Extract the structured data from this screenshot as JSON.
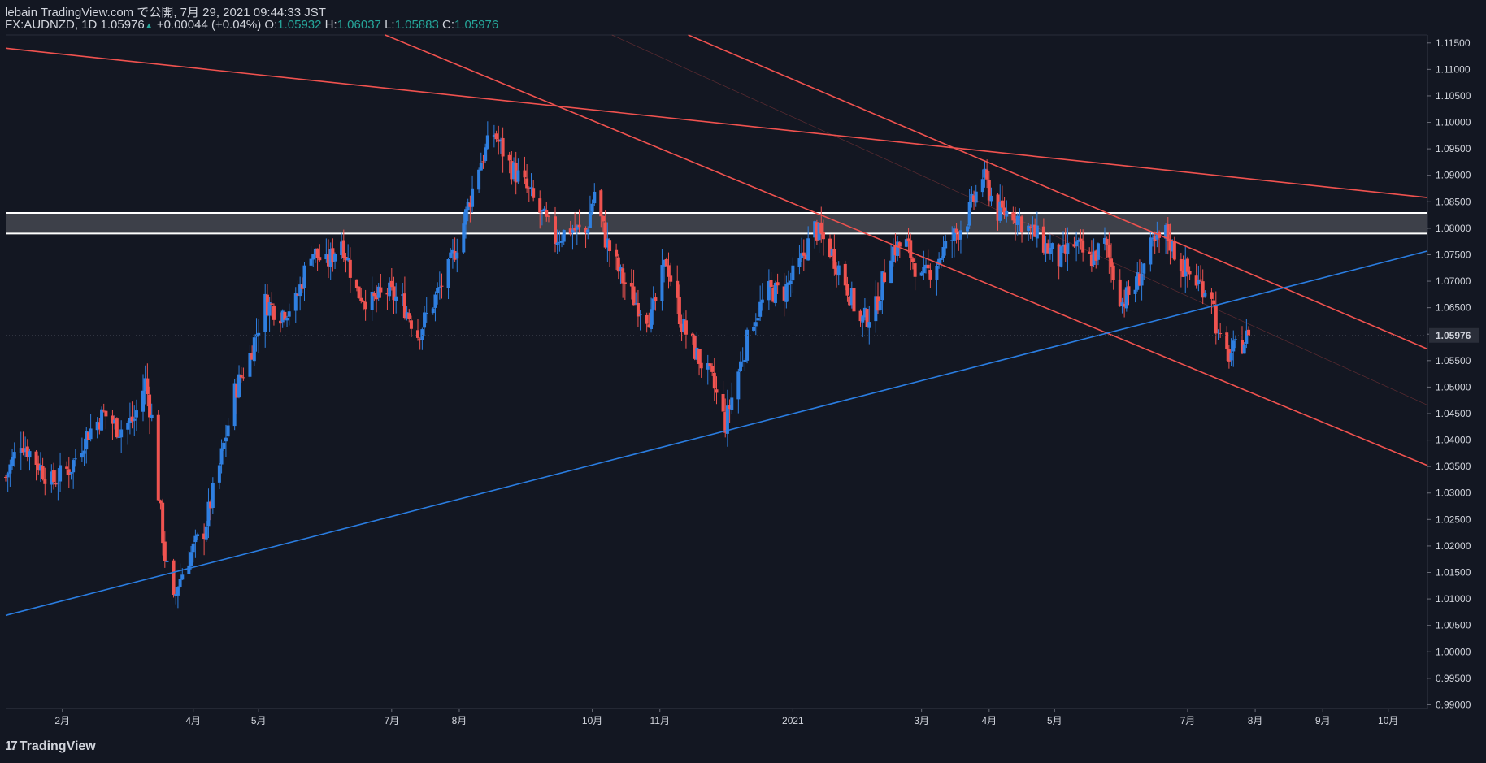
{
  "header": {
    "line1": "lebain TradingView.com で公開, 7月 29, 2021 09:44:33 JST",
    "symbol": "FX:AUDNZD, 1D",
    "last": "1.05976",
    "up_glyph": "▲",
    "change": "+0.00044 (+0.04%)",
    "o_label": "O:",
    "o_value": "1.05932",
    "h_label": "H:",
    "h_value": "1.06037",
    "l_label": "L:",
    "l_value": "1.05883",
    "c_label": "C:",
    "c_value": "1.05976"
  },
  "footer": {
    "logo": "17",
    "brand": "TradingView"
  },
  "colors": {
    "background": "#131722",
    "up": "#2f7fe0",
    "down": "#ef5350",
    "trend_red": "#f0524f",
    "trend_blue": "#2a7de1",
    "zone": "#ffffff"
  },
  "chart_data": {
    "type": "candlestick",
    "symbol": "FX:AUDNZD",
    "interval": "1D",
    "y_ticks": [
      "1.11500",
      "1.11000",
      "1.10500",
      "1.10000",
      "1.09500",
      "1.09000",
      "1.08500",
      "1.08000",
      "1.07500",
      "1.07000",
      "1.06500",
      "1.06000",
      "1.05500",
      "1.05000",
      "1.04500",
      "1.04000",
      "1.03500",
      "1.03000",
      "1.02500",
      "1.02000",
      "1.01500",
      "1.01000",
      "1.00500",
      "1.00000",
      "0.99500",
      "0.99000"
    ],
    "ylim": [
      0.9893,
      1.1165
    ],
    "x_ticks": [
      {
        "label": "2月",
        "date": "2020-02-01"
      },
      {
        "label": "4月",
        "date": "2020-04-01"
      },
      {
        "label": "5月",
        "date": "2020-05-01"
      },
      {
        "label": "7月",
        "date": "2020-07-01"
      },
      {
        "label": "8月",
        "date": "2020-08-01"
      },
      {
        "label": "10月",
        "date": "2020-10-01"
      },
      {
        "label": "11月",
        "date": "2020-11-01"
      },
      {
        "label": "2021",
        "date": "2021-01-01"
      },
      {
        "label": "3月",
        "date": "2021-03-01"
      },
      {
        "label": "4月",
        "date": "2021-04-01"
      },
      {
        "label": "5月",
        "date": "2021-05-01"
      },
      {
        "label": "7月",
        "date": "2021-07-01"
      },
      {
        "label": "8月",
        "date": "2021-08-01"
      },
      {
        "label": "9月",
        "date": "2021-09-01"
      },
      {
        "label": "10月",
        "date": "2021-10-01"
      }
    ],
    "xlim": [
      "2020-01-06",
      "2021-10-19"
    ],
    "last_price": "1.05976",
    "close_anchors": [
      [
        "2020-01-06",
        1.033
      ],
      [
        "2020-01-13",
        1.04
      ],
      [
        "2020-01-20",
        1.036
      ],
      [
        "2020-01-27",
        1.032
      ],
      [
        "2020-02-05",
        1.035
      ],
      [
        "2020-02-12",
        1.041
      ],
      [
        "2020-02-20",
        1.045
      ],
      [
        "2020-02-27",
        1.042
      ],
      [
        "2020-03-05",
        1.044
      ],
      [
        "2020-03-10",
        1.051
      ],
      [
        "2020-03-13",
        1.044
      ],
      [
        "2020-03-16",
        1.03
      ],
      [
        "2020-03-19",
        1.018
      ],
      [
        "2020-03-23",
        1.009
      ],
      [
        "2020-03-25",
        1.013
      ],
      [
        "2020-03-30",
        1.018
      ],
      [
        "2020-04-06",
        1.023
      ],
      [
        "2020-04-13",
        1.035
      ],
      [
        "2020-04-20",
        1.049
      ],
      [
        "2020-04-27",
        1.056
      ],
      [
        "2020-05-04",
        1.066
      ],
      [
        "2020-05-11",
        1.064
      ],
      [
        "2020-05-18",
        1.066
      ],
      [
        "2020-05-25",
        1.076
      ],
      [
        "2020-06-01",
        1.073
      ],
      [
        "2020-06-08",
        1.078
      ],
      [
        "2020-06-15",
        1.068
      ],
      [
        "2020-06-22",
        1.066
      ],
      [
        "2020-06-29",
        1.068
      ],
      [
        "2020-07-06",
        1.066
      ],
      [
        "2020-07-13",
        1.06
      ],
      [
        "2020-07-20",
        1.066
      ],
      [
        "2020-07-27",
        1.072
      ],
      [
        "2020-08-03",
        1.081
      ],
      [
        "2020-08-10",
        1.092
      ],
      [
        "2020-08-17",
        1.098
      ],
      [
        "2020-08-24",
        1.092
      ],
      [
        "2020-08-31",
        1.088
      ],
      [
        "2020-09-07",
        1.083
      ],
      [
        "2020-09-14",
        1.078
      ],
      [
        "2020-09-21",
        1.08
      ],
      [
        "2020-09-28",
        1.079
      ],
      [
        "2020-10-02",
        1.087
      ],
      [
        "2020-10-07",
        1.078
      ],
      [
        "2020-10-14",
        1.071
      ],
      [
        "2020-10-21",
        1.066
      ],
      [
        "2020-10-28",
        1.063
      ],
      [
        "2020-11-04",
        1.074
      ],
      [
        "2020-11-11",
        1.062
      ],
      [
        "2020-11-18",
        1.056
      ],
      [
        "2020-11-25",
        1.051
      ],
      [
        "2020-12-01",
        1.043
      ],
      [
        "2020-12-07",
        1.053
      ],
      [
        "2020-12-14",
        1.063
      ],
      [
        "2020-12-21",
        1.068
      ],
      [
        "2020-12-28",
        1.068
      ],
      [
        "2021-01-04",
        1.073
      ],
      [
        "2021-01-11",
        1.08
      ],
      [
        "2021-01-18",
        1.076
      ],
      [
        "2021-01-25",
        1.07
      ],
      [
        "2021-02-01",
        1.062
      ],
      [
        "2021-02-08",
        1.065
      ],
      [
        "2021-02-15",
        1.076
      ],
      [
        "2021-02-22",
        1.077
      ],
      [
        "2021-03-01",
        1.07
      ],
      [
        "2021-03-08",
        1.074
      ],
      [
        "2021-03-15",
        1.078
      ],
      [
        "2021-03-22",
        1.082
      ],
      [
        "2021-03-29",
        1.09
      ],
      [
        "2021-04-05",
        1.083
      ],
      [
        "2021-04-12",
        1.083
      ],
      [
        "2021-04-19",
        1.08
      ],
      [
        "2021-04-26",
        1.077
      ],
      [
        "2021-05-03",
        1.074
      ],
      [
        "2021-05-10",
        1.077
      ],
      [
        "2021-05-17",
        1.074
      ],
      [
        "2021-05-24",
        1.077
      ],
      [
        "2021-06-01",
        1.066
      ],
      [
        "2021-06-07",
        1.069
      ],
      [
        "2021-06-14",
        1.076
      ],
      [
        "2021-06-21",
        1.079
      ],
      [
        "2021-06-28",
        1.073
      ],
      [
        "2021-07-05",
        1.07
      ],
      [
        "2021-07-12",
        1.068
      ],
      [
        "2021-07-15",
        1.059
      ],
      [
        "2021-07-19",
        1.056
      ],
      [
        "2021-07-23",
        1.057
      ],
      [
        "2021-07-29",
        1.0598
      ]
    ],
    "resistance_zone": [
      1.079,
      1.0829
    ],
    "trendlines": [
      {
        "color": "red",
        "from": [
          "2020-01-06",
          1.114
        ],
        "to": [
          "2021-10-19",
          1.0858
        ]
      },
      {
        "color": "red",
        "from": [
          "2020-06-28",
          1.1165
        ],
        "to": [
          "2021-10-19",
          1.0352
        ]
      },
      {
        "color": "red",
        "from": [
          "2020-11-14",
          1.1165
        ],
        "to": [
          "2021-10-19",
          1.0572
        ]
      },
      {
        "color": "blue",
        "from": [
          "2020-01-06",
          1.0069
        ],
        "to": [
          "2021-10-19",
          1.0757
        ]
      },
      {
        "color": "faint",
        "from": [
          "2020-10-10",
          1.1165
        ],
        "to": [
          "2021-10-19",
          1.0466
        ]
      }
    ]
  }
}
